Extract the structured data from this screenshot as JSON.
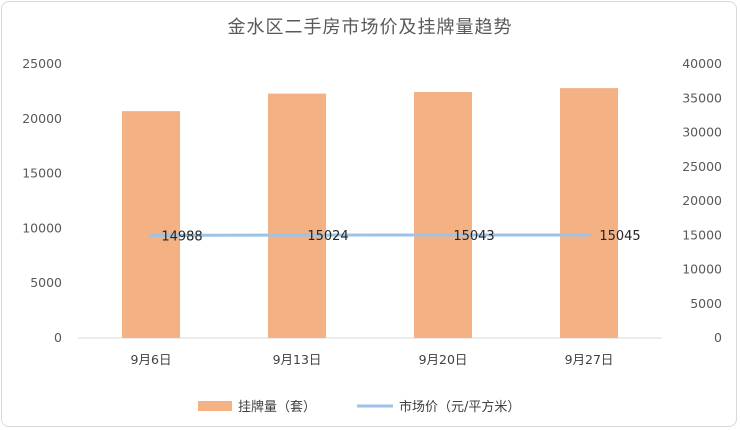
{
  "chart_data": {
    "type": "bar",
    "title": "金水区二手房市场价及挂牌量趋势",
    "categories": [
      "9月6日",
      "9月13日",
      "9月20日",
      "9月27日"
    ],
    "series": [
      {
        "name": "挂牌量（套）",
        "type": "bar",
        "axis": "left",
        "values": [
          20700,
          22300,
          22450,
          22800
        ],
        "color": "#f4b183"
      },
      {
        "name": "市场价（元/平方米）",
        "type": "line",
        "axis": "right",
        "values": [
          14988,
          15024,
          15043,
          15045
        ],
        "data_labels": [
          "14988",
          "15024",
          "15043",
          "15045"
        ],
        "color": "#9dc3e6"
      }
    ],
    "y_left": {
      "ylim": [
        0,
        25000
      ],
      "ticks": [
        "0",
        "5000",
        "10000",
        "15000",
        "20000",
        "25000"
      ]
    },
    "y_right": {
      "ylim": [
        0,
        40000
      ],
      "ticks": [
        "0",
        "5000",
        "10000",
        "15000",
        "20000",
        "25000",
        "30000",
        "35000",
        "40000"
      ]
    },
    "grid": false,
    "legend": "bottom"
  }
}
